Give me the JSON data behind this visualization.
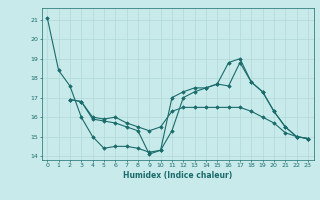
{
  "xlabel": "Humidex (Indice chaleur)",
  "bg_color": "#c8eaea",
  "grid_color": "#b0d8d8",
  "line_color": "#1a6b6b",
  "xlim": [
    -0.5,
    23.5
  ],
  "ylim": [
    13.8,
    21.6
  ],
  "yticks": [
    14,
    15,
    16,
    17,
    18,
    19,
    20,
    21
  ],
  "xticks": [
    0,
    1,
    2,
    3,
    4,
    5,
    6,
    7,
    8,
    9,
    10,
    11,
    12,
    13,
    14,
    15,
    16,
    17,
    18,
    19,
    20,
    21,
    22,
    23
  ],
  "series": [
    {
      "x": [
        0,
        1,
        2,
        3,
        4,
        5,
        6,
        7,
        8,
        9,
        10,
        11,
        12,
        13,
        14,
        15,
        16,
        17,
        18,
        19,
        20,
        21,
        22,
        23
      ],
      "y": [
        21.1,
        18.4,
        17.6,
        16.0,
        15.0,
        14.4,
        14.5,
        14.5,
        14.4,
        14.2,
        14.3,
        15.3,
        17.0,
        17.3,
        17.5,
        17.7,
        17.6,
        18.8,
        17.8,
        17.3,
        16.3,
        15.5,
        15.0,
        14.9
      ]
    },
    {
      "x": [
        2,
        3,
        4,
        5,
        6,
        7,
        8,
        9,
        10,
        11,
        12,
        13,
        14,
        15,
        16,
        17,
        18,
        19,
        20,
        21,
        22,
        23
      ],
      "y": [
        16.9,
        16.8,
        16.0,
        15.9,
        16.0,
        15.7,
        15.5,
        15.3,
        15.5,
        16.3,
        16.5,
        16.5,
        16.5,
        16.5,
        16.5,
        16.5,
        16.3,
        16.0,
        15.7,
        15.2,
        15.0,
        14.9
      ]
    },
    {
      "x": [
        2,
        3,
        4,
        5,
        6,
        7,
        8,
        9,
        10,
        11,
        12,
        13,
        14,
        15,
        16,
        17,
        18,
        19,
        20,
        21,
        22,
        23
      ],
      "y": [
        16.9,
        16.8,
        15.9,
        15.8,
        15.7,
        15.5,
        15.3,
        14.1,
        14.3,
        17.0,
        17.3,
        17.5,
        17.5,
        17.7,
        18.8,
        19.0,
        17.8,
        17.3,
        16.3,
        15.5,
        15.0,
        14.9
      ]
    }
  ]
}
